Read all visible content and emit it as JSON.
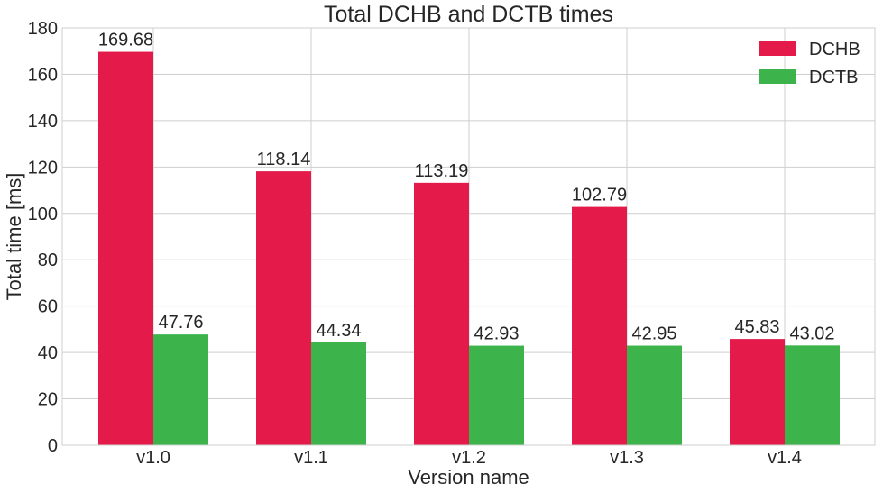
{
  "chart_data": {
    "type": "bar",
    "title": "Total DCHB and DCTB times",
    "xlabel": "Version name",
    "ylabel": "Total time [ms]",
    "categories": [
      "v1.0",
      "v1.1",
      "v1.2",
      "v1.3",
      "v1.4"
    ],
    "series": [
      {
        "name": "DCHB",
        "color": "#e31a4a",
        "values": [
          169.68,
          118.14,
          113.19,
          102.79,
          45.83
        ]
      },
      {
        "name": "DCTB",
        "color": "#3cb44b",
        "values": [
          47.76,
          44.34,
          42.93,
          42.95,
          43.02
        ]
      }
    ],
    "ylim": [
      0,
      180
    ],
    "yticks": [
      0,
      20,
      40,
      60,
      80,
      100,
      120,
      140,
      160,
      180
    ],
    "grid": true,
    "legend_position": "top-right",
    "data_labels": [
      [
        "169.68",
        "118.14",
        "113.19",
        "102.79",
        "45.83"
      ],
      [
        "47.76",
        "44.34",
        "42.93",
        "42.95",
        "43.02"
      ]
    ]
  }
}
